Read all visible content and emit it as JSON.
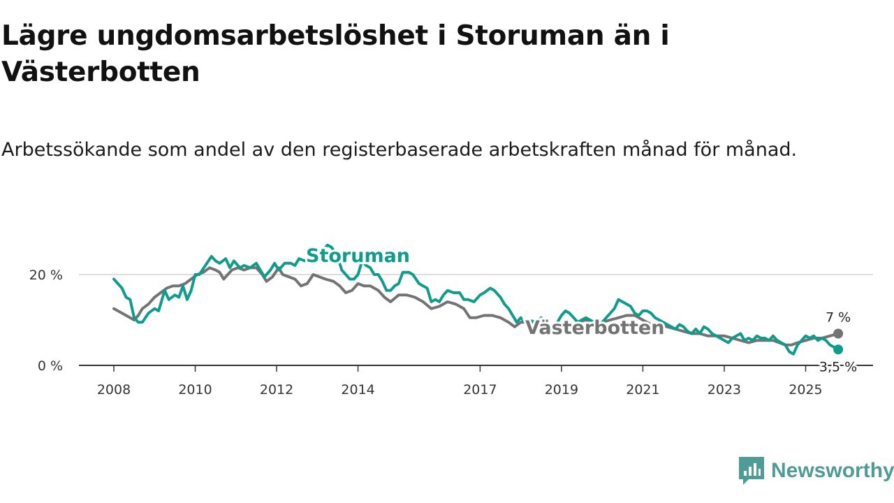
{
  "title": "Lägre ungdomsarbetslöshet i Storuman än i Västerbotten",
  "subtitle": "Arbetssökande som andel av den registerbaserade arbetskraften månad för månad.",
  "brand": {
    "name": "Newsworthy",
    "color": "#4f9c97"
  },
  "chart_data": {
    "type": "line",
    "title": "Lägre ungdomsarbetslöshet i Storuman än i Västerbotten",
    "subtitle": "Arbetssökande som andel av den registerbaserade arbetskraften månad för månad.",
    "xlabel": "",
    "ylabel": "",
    "xlim": [
      2008,
      2025.85
    ],
    "ylim": [
      0,
      25
    ],
    "x_ticks": [
      {
        "value": 2008,
        "label": "2008"
      },
      {
        "value": 2010,
        "label": "2010"
      },
      {
        "value": 2012,
        "label": "2012"
      },
      {
        "value": 2014,
        "label": "2014"
      },
      {
        "value": 2017,
        "label": "2017"
      },
      {
        "value": 2019,
        "label": "2019"
      },
      {
        "value": 2021,
        "label": "2021"
      },
      {
        "value": 2023,
        "label": "2023"
      },
      {
        "value": 2025,
        "label": "2025"
      }
    ],
    "y_ticks": [
      {
        "value": 0,
        "label": "0 %"
      },
      {
        "value": 20,
        "label": "20 %"
      }
    ],
    "grid": true,
    "series": [
      {
        "name": "Storuman",
        "label": "Storuman",
        "color": "#0f9c8c",
        "end_label": "3,5 %",
        "points": [
          [
            2008.0,
            19.0
          ],
          [
            2008.2,
            17.0
          ],
          [
            2008.3,
            15.0
          ],
          [
            2008.4,
            14.5
          ],
          [
            2008.5,
            10.5
          ],
          [
            2008.6,
            9.5
          ],
          [
            2008.7,
            9.5
          ],
          [
            2008.85,
            11.5
          ],
          [
            2009.0,
            12.5
          ],
          [
            2009.1,
            12.0
          ],
          [
            2009.25,
            16.5
          ],
          [
            2009.35,
            14.5
          ],
          [
            2009.5,
            15.5
          ],
          [
            2009.6,
            15.0
          ],
          [
            2009.7,
            17.5
          ],
          [
            2009.8,
            14.5
          ],
          [
            2009.9,
            16.5
          ],
          [
            2010.0,
            20.0
          ],
          [
            2010.1,
            20.0
          ],
          [
            2010.25,
            22.0
          ],
          [
            2010.4,
            24.0
          ],
          [
            2010.5,
            23.0
          ],
          [
            2010.6,
            22.5
          ],
          [
            2010.75,
            23.5
          ],
          [
            2010.85,
            21.5
          ],
          [
            2010.95,
            23.0
          ],
          [
            2011.1,
            21.5
          ],
          [
            2011.2,
            22.0
          ],
          [
            2011.35,
            21.5
          ],
          [
            2011.5,
            22.5
          ],
          [
            2011.6,
            21.0
          ],
          [
            2011.7,
            19.5
          ],
          [
            2011.85,
            21.0
          ],
          [
            2011.95,
            22.5
          ],
          [
            2012.05,
            21.0
          ],
          [
            2012.2,
            22.5
          ],
          [
            2012.35,
            22.5
          ],
          [
            2012.45,
            22.0
          ],
          [
            2012.55,
            23.5
          ],
          [
            2012.7,
            23.0
          ],
          [
            2012.8,
            23.5
          ],
          [
            2012.9,
            22.5
          ],
          [
            2013.0,
            23.5
          ],
          [
            2013.15,
            25.5
          ],
          [
            2013.25,
            26.5
          ],
          [
            2013.35,
            26.0
          ],
          [
            2013.5,
            24.0
          ],
          [
            2013.6,
            21.0
          ],
          [
            2013.7,
            20.0
          ],
          [
            2013.8,
            19.0
          ],
          [
            2013.9,
            19.0
          ],
          [
            2014.0,
            20.0
          ],
          [
            2014.1,
            23.0
          ],
          [
            2014.2,
            22.0
          ],
          [
            2014.3,
            21.5
          ],
          [
            2014.4,
            20.0
          ],
          [
            2014.5,
            20.0
          ],
          [
            2014.6,
            18.5
          ],
          [
            2014.7,
            16.5
          ],
          [
            2014.8,
            16.5
          ],
          [
            2014.9,
            17.5
          ],
          [
            2015.0,
            18.0
          ],
          [
            2015.1,
            20.5
          ],
          [
            2015.25,
            20.5
          ],
          [
            2015.35,
            20.0
          ],
          [
            2015.5,
            18.0
          ],
          [
            2015.6,
            17.5
          ],
          [
            2015.7,
            17.0
          ],
          [
            2015.8,
            14.0
          ],
          [
            2015.9,
            14.5
          ],
          [
            2016.0,
            14.0
          ],
          [
            2016.1,
            15.5
          ],
          [
            2016.2,
            16.5
          ],
          [
            2016.35,
            16.0
          ],
          [
            2016.5,
            16.0
          ],
          [
            2016.6,
            14.5
          ],
          [
            2016.7,
            14.5
          ],
          [
            2016.85,
            14.0
          ],
          [
            2017.0,
            15.5
          ],
          [
            2017.1,
            16.0
          ],
          [
            2017.25,
            17.0
          ],
          [
            2017.35,
            16.5
          ],
          [
            2017.5,
            15.0
          ],
          [
            2017.6,
            13.5
          ],
          [
            2017.7,
            12.5
          ],
          [
            2017.8,
            11.0
          ],
          [
            2017.9,
            9.5
          ],
          [
            2018.0,
            10.5
          ],
          [
            2018.1,
            9.5
          ],
          [
            2018.25,
            9.8
          ],
          [
            2018.4,
            9.5
          ],
          [
            2018.5,
            10.5
          ],
          [
            2018.6,
            9.5
          ],
          null,
          [
            2018.9,
            9.5
          ],
          [
            2019.0,
            11.0
          ],
          [
            2019.1,
            12.0
          ],
          [
            2019.2,
            11.5
          ],
          [
            2019.3,
            10.5
          ],
          [
            2019.4,
            9.5
          ],
          [
            2019.5,
            10.0
          ],
          [
            2019.6,
            10.5
          ],
          [
            2019.7,
            10.0
          ],
          [
            2019.8,
            9.5
          ],
          null,
          [
            2020.0,
            9.5
          ],
          [
            2020.1,
            10.5
          ],
          [
            2020.2,
            11.5
          ],
          [
            2020.3,
            12.5
          ],
          [
            2020.4,
            14.5
          ],
          [
            2020.5,
            14.0
          ],
          [
            2020.6,
            13.5
          ],
          [
            2020.7,
            13.0
          ],
          [
            2020.8,
            11.5
          ],
          [
            2020.9,
            11.0
          ],
          [
            2021.0,
            12.0
          ],
          [
            2021.1,
            12.0
          ],
          [
            2021.2,
            11.5
          ],
          [
            2021.3,
            10.5
          ],
          [
            2021.4,
            10.0
          ],
          [
            2021.5,
            9.5
          ],
          [
            2021.6,
            9.0
          ],
          [
            2021.7,
            8.5
          ],
          [
            2021.8,
            8.0
          ],
          [
            2021.9,
            9.0
          ],
          [
            2022.0,
            8.5
          ],
          [
            2022.1,
            7.5
          ],
          [
            2022.2,
            7.0
          ],
          [
            2022.3,
            8.0
          ],
          [
            2022.4,
            7.0
          ],
          [
            2022.5,
            8.5
          ],
          [
            2022.6,
            8.0
          ],
          [
            2022.7,
            7.0
          ],
          [
            2022.8,
            6.5
          ],
          [
            2022.9,
            6.0
          ],
          [
            2023.0,
            5.5
          ],
          [
            2023.1,
            5.0
          ],
          [
            2023.2,
            6.0
          ],
          [
            2023.3,
            6.5
          ],
          [
            2023.4,
            7.0
          ],
          [
            2023.5,
            5.5
          ],
          [
            2023.6,
            6.0
          ],
          [
            2023.7,
            5.5
          ],
          [
            2023.8,
            6.5
          ],
          [
            2023.9,
            6.0
          ],
          [
            2024.0,
            6.0
          ],
          [
            2024.1,
            5.5
          ],
          [
            2024.2,
            6.5
          ],
          [
            2024.3,
            5.5
          ],
          [
            2024.4,
            5.0
          ],
          [
            2024.5,
            4.5
          ],
          [
            2024.6,
            3.0
          ],
          [
            2024.7,
            2.5
          ],
          [
            2024.8,
            4.5
          ],
          [
            2024.9,
            5.5
          ],
          [
            2025.0,
            6.5
          ],
          [
            2025.1,
            6.0
          ],
          [
            2025.2,
            6.5
          ],
          [
            2025.3,
            5.5
          ],
          [
            2025.4,
            6.0
          ],
          [
            2025.5,
            5.5
          ],
          [
            2025.6,
            4.5
          ],
          [
            2025.7,
            4.0
          ],
          [
            2025.8,
            3.5
          ]
        ]
      },
      {
        "name": "Västerbotten",
        "label": "Västerbotten",
        "color": "#737373",
        "end_label": "7 %",
        "points": [
          [
            2008.0,
            12.5
          ],
          [
            2008.2,
            11.5
          ],
          [
            2008.3,
            11.0
          ],
          [
            2008.4,
            10.5
          ],
          [
            2008.5,
            10.0
          ],
          [
            2008.6,
            11.0
          ],
          [
            2008.7,
            12.5
          ],
          [
            2008.85,
            13.5
          ],
          [
            2009.0,
            15.0
          ],
          [
            2009.15,
            16.0
          ],
          [
            2009.3,
            17.0
          ],
          [
            2009.45,
            17.5
          ],
          [
            2009.6,
            17.5
          ],
          [
            2009.75,
            18.0
          ],
          [
            2009.9,
            19.0
          ],
          [
            2010.05,
            20.0
          ],
          [
            2010.2,
            20.5
          ],
          [
            2010.35,
            21.5
          ],
          [
            2010.5,
            21.0
          ],
          [
            2010.6,
            20.5
          ],
          [
            2010.7,
            19.0
          ],
          [
            2010.8,
            20.0
          ],
          [
            2010.9,
            21.0
          ],
          [
            2011.05,
            21.5
          ],
          [
            2011.2,
            21.0
          ],
          [
            2011.35,
            21.5
          ],
          [
            2011.5,
            21.5
          ],
          [
            2011.65,
            20.0
          ],
          [
            2011.75,
            18.5
          ],
          [
            2011.9,
            19.5
          ],
          [
            2012.05,
            21.5
          ],
          [
            2012.15,
            20.0
          ],
          [
            2012.3,
            19.5
          ],
          [
            2012.45,
            19.0
          ],
          [
            2012.6,
            17.5
          ],
          [
            2012.75,
            18.0
          ],
          [
            2012.9,
            20.0
          ],
          [
            2013.05,
            19.5
          ],
          [
            2013.2,
            19.0
          ],
          [
            2013.4,
            18.5
          ],
          [
            2013.55,
            17.5
          ],
          [
            2013.7,
            16.0
          ],
          [
            2013.85,
            16.5
          ],
          [
            2014.0,
            18.0
          ],
          [
            2014.15,
            17.5
          ],
          [
            2014.3,
            17.5
          ],
          [
            2014.5,
            16.5
          ],
          [
            2014.65,
            15.0
          ],
          [
            2014.8,
            14.0
          ],
          [
            2015.0,
            15.5
          ],
          [
            2015.2,
            15.5
          ],
          [
            2015.4,
            15.0
          ],
          [
            2015.6,
            14.0
          ],
          [
            2015.8,
            12.5
          ],
          [
            2016.0,
            13.0
          ],
          [
            2016.2,
            14.0
          ],
          [
            2016.4,
            13.5
          ],
          [
            2016.6,
            12.5
          ],
          [
            2016.75,
            10.5
          ],
          [
            2016.9,
            10.5
          ],
          [
            2017.1,
            11.0
          ],
          [
            2017.3,
            11.0
          ],
          [
            2017.5,
            10.5
          ],
          [
            2017.7,
            9.5
          ],
          [
            2017.85,
            8.5
          ],
          [
            2018.0,
            9.5
          ],
          [
            2018.2,
            9.5
          ],
          [
            2018.35,
            9.5
          ],
          null,
          [
            2019.4,
            9.5
          ],
          [
            2019.6,
            10.0
          ],
          [
            2019.8,
            9.0
          ],
          [
            2020.0,
            9.5
          ],
          [
            2020.2,
            10.0
          ],
          [
            2020.4,
            10.5
          ],
          [
            2020.6,
            11.0
          ],
          [
            2020.8,
            11.0
          ],
          [
            2021.0,
            10.0
          ],
          [
            2021.2,
            9.0
          ],
          [
            2021.4,
            9.0
          ],
          [
            2021.6,
            8.5
          ],
          [
            2021.8,
            8.0
          ],
          [
            2022.0,
            7.5
          ],
          [
            2022.2,
            7.0
          ],
          [
            2022.4,
            7.0
          ],
          [
            2022.6,
            6.5
          ],
          [
            2022.8,
            6.5
          ],
          [
            2023.0,
            6.5
          ],
          [
            2023.2,
            6.0
          ],
          [
            2023.4,
            5.5
          ],
          [
            2023.6,
            5.0
          ],
          [
            2023.8,
            5.5
          ],
          [
            2024.0,
            5.5
          ],
          [
            2024.2,
            5.5
          ],
          [
            2024.35,
            5.0
          ],
          [
            2024.5,
            4.5
          ],
          [
            2024.65,
            4.5
          ],
          [
            2024.8,
            5.0
          ],
          [
            2025.0,
            5.5
          ],
          [
            2025.2,
            6.0
          ],
          [
            2025.4,
            6.0
          ],
          [
            2025.6,
            6.5
          ],
          [
            2025.8,
            7.0
          ]
        ]
      }
    ]
  }
}
